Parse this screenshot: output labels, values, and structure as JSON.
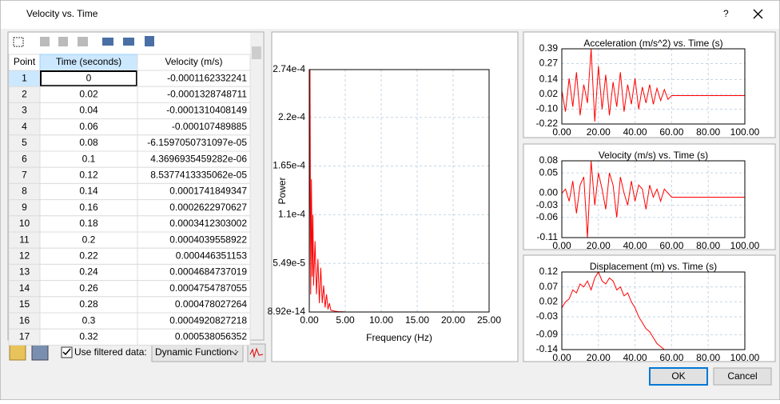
{
  "window": {
    "title": "Velocity vs. Time",
    "help": "?"
  },
  "table": {
    "columns": [
      "Point",
      "Time (seconds)",
      "Velocity (m/s)"
    ],
    "rows": [
      [
        "1",
        "0",
        "-0.0001162332241"
      ],
      [
        "2",
        "0.02",
        "-0.0001328748711"
      ],
      [
        "3",
        "0.04",
        "-0.0001310408149"
      ],
      [
        "4",
        "0.06",
        "-0.000107489885"
      ],
      [
        "5",
        "0.08",
        "-6.1597050731097e-05"
      ],
      [
        "6",
        "0.1",
        "4.3696935459282e-06"
      ],
      [
        "7",
        "0.12",
        "8.5377413335062e-05"
      ],
      [
        "8",
        "0.14",
        "0.0001741849347"
      ],
      [
        "9",
        "0.16",
        "0.0002622970627"
      ],
      [
        "10",
        "0.18",
        "0.0003412303002"
      ],
      [
        "11",
        "0.2",
        "0.0004039558922"
      ],
      [
        "12",
        "0.22",
        "0.000446351153"
      ],
      [
        "13",
        "0.24",
        "0.0004684737019"
      ],
      [
        "14",
        "0.26",
        "0.0004754787055"
      ],
      [
        "15",
        "0.28",
        "0.000478027264"
      ],
      [
        "16",
        "0.3",
        "0.0004920827218"
      ],
      [
        "17",
        "0.32",
        "0.000538056352"
      ]
    ]
  },
  "controls": {
    "checkbox_label": "Use filtered data:",
    "checked": true,
    "dropdown": "Dynamic Function :"
  },
  "buttons": {
    "ok": "OK",
    "cancel": "Cancel"
  },
  "chart_data": [
    {
      "type": "line",
      "xlabel": "Frequency (Hz)",
      "ylabel": "Power",
      "grid": true,
      "x": [
        0,
        0.1,
        0.2,
        0.3,
        0.4,
        0.5,
        0.6,
        0.8,
        1.0,
        1.2,
        1.4,
        1.6,
        1.8,
        2.0,
        2.2,
        2.4,
        2.6,
        2.8,
        3.0,
        3.5,
        4,
        5,
        10,
        15,
        20,
        25
      ],
      "series": [
        {
          "color": "#ff0000",
          "values": [
            1e-06,
            0.000274,
            2e-05,
            0.00015,
            4e-05,
            0.00011,
            3e-05,
            8e-05,
            2e-05,
            6e-05,
            1e-05,
            5e-05,
            1e-05,
            3e-05,
            5e-06,
            2e-05,
            3e-06,
            1e-05,
            2e-06,
            1e-06,
            5e-07,
            1e-07,
            0,
            0,
            0,
            0
          ]
        }
      ],
      "xlim": [
        0,
        25
      ],
      "xticks": [
        {
          "value": 0,
          "label": "0.00"
        },
        {
          "value": 5,
          "label": "5.00"
        },
        {
          "value": 10,
          "label": "10.00"
        },
        {
          "value": 15,
          "label": "15.00"
        },
        {
          "value": 20,
          "label": "20.00"
        },
        {
          "value": 25,
          "label": "25.00"
        }
      ],
      "ylim": [
        8.92e-14,
        0.000274
      ],
      "yticks": [
        {
          "value": 0.000274,
          "label": "2.74e-4"
        },
        {
          "value": 0.00022,
          "label": "2.2e-4"
        },
        {
          "value": 0.000165,
          "label": "1.65e-4"
        },
        {
          "value": 0.00011,
          "label": "1.1e-4"
        },
        {
          "value": 5.49e-05,
          "label": "5.49e-5"
        },
        {
          "value": 8.92e-14,
          "label": "8.92e-14"
        }
      ]
    },
    {
      "type": "line",
      "title": "Acceleration (m/s^2) vs. Time (s)",
      "grid": true,
      "x": [
        0,
        2,
        4,
        6,
        8,
        10,
        12,
        14,
        16,
        18,
        20,
        22,
        24,
        26,
        28,
        30,
        32,
        34,
        36,
        38,
        40,
        42,
        44,
        46,
        48,
        50,
        52,
        54,
        56,
        58,
        60,
        100
      ],
      "series": [
        {
          "color": "#ff0000",
          "values": [
            0.05,
            -0.12,
            0.15,
            -0.08,
            0.2,
            -0.15,
            0.1,
            -0.05,
            0.39,
            -0.2,
            0.25,
            -0.1,
            0.18,
            -0.15,
            0.12,
            -0.08,
            0.2,
            -0.12,
            0.1,
            -0.06,
            0.15,
            -0.1,
            0.08,
            -0.05,
            0.1,
            -0.06,
            0.07,
            -0.03,
            0.06,
            -0.02,
            0.01,
            0.01
          ]
        }
      ],
      "xlim": [
        0,
        100
      ],
      "xticks": [
        {
          "value": 0,
          "label": "0.00"
        },
        {
          "value": 20,
          "label": "20.00"
        },
        {
          "value": 40,
          "label": "40.00"
        },
        {
          "value": 60,
          "label": "60.00"
        },
        {
          "value": 80,
          "label": "80.00"
        },
        {
          "value": 100,
          "label": "100.00"
        }
      ],
      "ylim": [
        -0.22,
        0.39
      ],
      "yticks": [
        0.39,
        0.27,
        0.14,
        0.02,
        {
          "value": -0.1,
          "label": "-0.10"
        },
        -0.22
      ]
    },
    {
      "type": "line",
      "title": "Velocity (m/s) vs. Time (s)",
      "grid": true,
      "x": [
        0,
        2,
        4,
        6,
        8,
        10,
        12,
        14,
        16,
        18,
        20,
        22,
        24,
        26,
        28,
        30,
        32,
        34,
        36,
        38,
        40,
        42,
        44,
        46,
        48,
        50,
        52,
        54,
        56,
        58,
        60,
        100
      ],
      "series": [
        {
          "color": "#ff0000",
          "values": [
            0.0,
            0.01,
            -0.02,
            0.03,
            -0.05,
            0.02,
            0.04,
            -0.11,
            0.08,
            -0.03,
            0.05,
            0.01,
            -0.04,
            0.05,
            0.02,
            -0.06,
            0.04,
            0.0,
            -0.03,
            0.03,
            -0.02,
            0.02,
            0.01,
            -0.04,
            0.02,
            -0.01,
            0.01,
            -0.02,
            0.01,
            0.0,
            -0.01,
            -0.01
          ]
        }
      ],
      "xlim": [
        0,
        100
      ],
      "xticks": [
        {
          "value": 0,
          "label": "0.00"
        },
        {
          "value": 20,
          "label": "20.00"
        },
        {
          "value": 40,
          "label": "40.00"
        },
        {
          "value": 60,
          "label": "60.00"
        },
        {
          "value": 80,
          "label": "80.00"
        },
        {
          "value": 100,
          "label": "100.00"
        }
      ],
      "ylim": [
        -0.11,
        0.08
      ],
      "yticks": [
        0.08,
        0.05,
        {
          "value": 0,
          "label": "0.00"
        },
        -0.03,
        -0.06,
        -0.11
      ]
    },
    {
      "type": "line",
      "title": "Displacement (m) vs. Time (s)",
      "grid": true,
      "x": [
        0,
        2,
        4,
        6,
        8,
        10,
        12,
        14,
        16,
        18,
        20,
        22,
        24,
        26,
        28,
        30,
        32,
        34,
        36,
        38,
        40,
        42,
        44,
        46,
        48,
        50,
        52,
        54,
        56,
        58,
        60,
        100
      ],
      "series": [
        {
          "color": "#ff0000",
          "values": [
            0.0,
            0.02,
            0.03,
            0.06,
            0.05,
            0.08,
            0.07,
            0.09,
            0.06,
            0.1,
            0.12,
            0.09,
            0.08,
            0.1,
            0.09,
            0.06,
            0.07,
            0.04,
            0.05,
            0.02,
            0.0,
            -0.03,
            -0.05,
            -0.07,
            -0.08,
            -0.1,
            -0.12,
            -0.13,
            -0.14,
            -0.14,
            -0.14,
            -0.14
          ]
        }
      ],
      "xlim": [
        0,
        100
      ],
      "xticks": [
        {
          "value": 0,
          "label": "0.00"
        },
        {
          "value": 20,
          "label": "20.00"
        },
        {
          "value": 40,
          "label": "40.00"
        },
        {
          "value": 60,
          "label": "60.00"
        },
        {
          "value": 80,
          "label": "80.00"
        },
        {
          "value": 100,
          "label": "100.00"
        }
      ],
      "ylim": [
        -0.14,
        0.12
      ],
      "yticks": [
        0.12,
        0.07,
        0.02,
        -0.03,
        -0.09,
        -0.14
      ]
    }
  ]
}
